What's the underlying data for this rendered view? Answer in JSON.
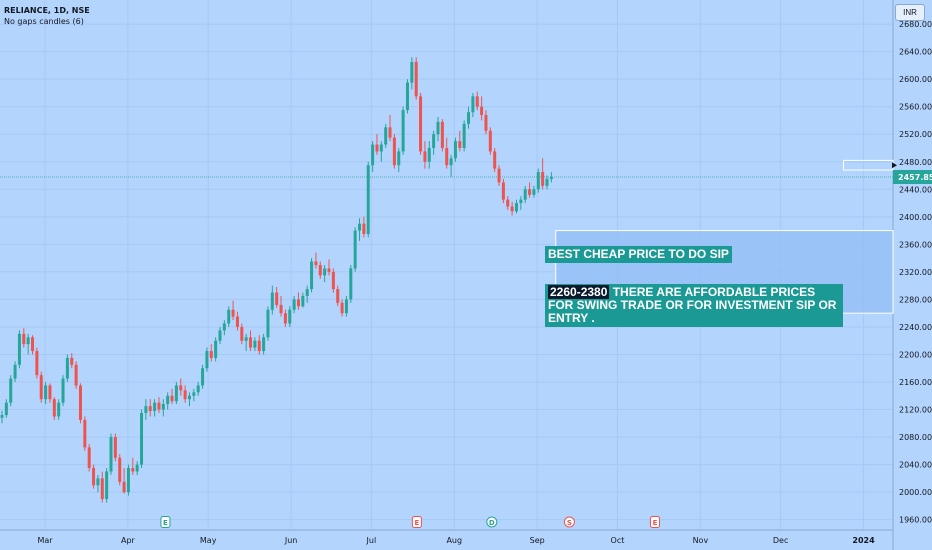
{
  "header": {
    "title": "RELIANCE, 1D, NSE",
    "subtitle": "No gaps candles (6)",
    "currency": "INR"
  },
  "annotations": {
    "note1": "BEST CHEAP PRICE TO DO SIP",
    "note2_range": "2260-2380",
    "note2_text": " THERE ARE AFFORDABLE PRICES FOR SWING TRADE OR FOR INVESTMENT SIP OR ENTRY ."
  },
  "chart_data": {
    "type": "candlestick",
    "symbol": "RELIANCE",
    "interval": "1D",
    "exchange": "NSE",
    "currency": "INR",
    "last_price": 2457.85,
    "ylim": [
      1945,
      2715
    ],
    "y_ticks": [
      1960,
      2000,
      2040,
      2080,
      2120,
      2160,
      2200,
      2240,
      2280,
      2320,
      2360,
      2400,
      2440,
      2480,
      2520,
      2560,
      2600,
      2640,
      2680
    ],
    "x_ticks": [
      {
        "label": "Mar",
        "day": 0
      },
      {
        "label": "Apr",
        "day": 31
      },
      {
        "label": "May",
        "day": 61
      },
      {
        "label": "Jun",
        "day": 92
      },
      {
        "label": "Jul",
        "day": 122
      },
      {
        "label": "Aug",
        "day": 153
      },
      {
        "label": "Sep",
        "day": 184
      },
      {
        "label": "Oct",
        "day": 214
      },
      {
        "label": "Nov",
        "day": 245
      },
      {
        "label": "Dec",
        "day": 275
      },
      {
        "label": "2024",
        "day": 306
      }
    ],
    "zones": [
      {
        "name": "accumulation-zone",
        "low": 2260,
        "high": 2380,
        "from_day": 127,
        "to_day": 340
      },
      {
        "name": "resistance-zone",
        "low": 2468,
        "high": 2482,
        "from_day": 193,
        "to_day": 340
      }
    ],
    "price_line": 2457.85,
    "colors": {
      "up": "#26a69a",
      "down": "#ef5350",
      "background": "#b3d4fc",
      "zone": "#90bdf7"
    },
    "event_markers": [
      {
        "day": 54,
        "letter": "E",
        "color": "#26a69a"
      },
      {
        "day": 148,
        "letter": "E",
        "color": "#ef5350"
      },
      {
        "day": 176,
        "letter": "D",
        "color": "#26a69a"
      },
      {
        "day": 205,
        "letter": "S",
        "color": "#ef5350"
      },
      {
        "day": 237,
        "letter": "E",
        "color": "#ef5350"
      }
    ],
    "candles": [
      [
        0,
        2108,
        2118,
        2100,
        2112
      ],
      [
        1,
        2112,
        2135,
        2108,
        2130
      ],
      [
        2,
        2130,
        2170,
        2125,
        2165
      ],
      [
        3,
        2165,
        2190,
        2160,
        2185
      ],
      [
        4,
        2185,
        2235,
        2180,
        2230
      ],
      [
        5,
        2230,
        2238,
        2210,
        2215
      ],
      [
        6,
        2215,
        2230,
        2200,
        2225
      ],
      [
        7,
        2225,
        2228,
        2200,
        2205
      ],
      [
        8,
        2205,
        2210,
        2165,
        2170
      ],
      [
        9,
        2170,
        2175,
        2130,
        2135
      ],
      [
        10,
        2135,
        2160,
        2128,
        2155
      ],
      [
        11,
        2155,
        2158,
        2130,
        2135
      ],
      [
        12,
        2135,
        2138,
        2105,
        2110
      ],
      [
        13,
        2110,
        2135,
        2105,
        2130
      ],
      [
        14,
        2130,
        2170,
        2125,
        2165
      ],
      [
        15,
        2165,
        2200,
        2160,
        2195
      ],
      [
        16,
        2195,
        2202,
        2180,
        2185
      ],
      [
        17,
        2185,
        2190,
        2150,
        2155
      ],
      [
        18,
        2155,
        2158,
        2100,
        2105
      ],
      [
        19,
        2105,
        2110,
        2060,
        2065
      ],
      [
        20,
        2065,
        2070,
        2030,
        2035
      ],
      [
        21,
        2035,
        2040,
        2005,
        2010
      ],
      [
        22,
        2010,
        2025,
        2000,
        2020
      ],
      [
        23,
        2020,
        2030,
        1985,
        1990
      ],
      [
        24,
        1990,
        2035,
        1985,
        2030
      ],
      [
        25,
        2030,
        2085,
        2025,
        2080
      ],
      [
        26,
        2080,
        2085,
        2045,
        2050
      ],
      [
        27,
        2050,
        2055,
        2010,
        2015
      ],
      [
        28,
        2015,
        2035,
        1998,
        2000
      ],
      [
        29,
        2000,
        2040,
        1995,
        2035
      ],
      [
        30,
        2035,
        2050,
        2025,
        2030
      ],
      [
        31,
        2030,
        2045,
        2025,
        2040
      ],
      [
        32,
        2040,
        2120,
        2035,
        2115
      ],
      [
        33,
        2115,
        2135,
        2105,
        2125
      ],
      [
        34,
        2125,
        2135,
        2110,
        2118
      ],
      [
        35,
        2118,
        2135,
        2110,
        2130
      ],
      [
        36,
        2130,
        2138,
        2115,
        2120
      ],
      [
        37,
        2120,
        2135,
        2110,
        2128
      ],
      [
        38,
        2128,
        2145,
        2120,
        2140
      ],
      [
        39,
        2140,
        2150,
        2128,
        2132
      ],
      [
        40,
        2132,
        2160,
        2128,
        2155
      ],
      [
        41,
        2155,
        2165,
        2140,
        2148
      ],
      [
        42,
        2148,
        2155,
        2130,
        2135
      ],
      [
        43,
        2135,
        2145,
        2125,
        2140
      ],
      [
        44,
        2140,
        2150,
        2132,
        2145
      ],
      [
        45,
        2145,
        2160,
        2140,
        2155
      ],
      [
        46,
        2155,
        2185,
        2150,
        2180
      ],
      [
        47,
        2180,
        2210,
        2175,
        2205
      ],
      [
        48,
        2205,
        2215,
        2190,
        2195
      ],
      [
        49,
        2195,
        2225,
        2190,
        2220
      ],
      [
        50,
        2220,
        2240,
        2215,
        2235
      ],
      [
        51,
        2235,
        2250,
        2228,
        2245
      ],
      [
        52,
        2245,
        2270,
        2240,
        2265
      ],
      [
        53,
        2265,
        2278,
        2250,
        2255
      ],
      [
        54,
        2255,
        2262,
        2235,
        2240
      ],
      [
        55,
        2240,
        2245,
        2215,
        2220
      ],
      [
        56,
        2220,
        2230,
        2205,
        2225
      ],
      [
        57,
        2225,
        2235,
        2205,
        2210
      ],
      [
        58,
        2210,
        2225,
        2205,
        2220
      ],
      [
        59,
        2220,
        2228,
        2200,
        2205
      ],
      [
        60,
        2205,
        2230,
        2200,
        2225
      ],
      [
        61,
        2225,
        2270,
        2220,
        2265
      ],
      [
        62,
        2265,
        2300,
        2258,
        2290
      ],
      [
        63,
        2290,
        2298,
        2268,
        2272
      ],
      [
        64,
        2272,
        2285,
        2255,
        2260
      ],
      [
        65,
        2260,
        2265,
        2240,
        2245
      ],
      [
        66,
        2245,
        2270,
        2240,
        2265
      ],
      [
        67,
        2265,
        2285,
        2260,
        2280
      ],
      [
        68,
        2280,
        2290,
        2265,
        2270
      ],
      [
        69,
        2270,
        2290,
        2268,
        2285
      ],
      [
        70,
        2285,
        2300,
        2275,
        2295
      ],
      [
        71,
        2295,
        2340,
        2290,
        2335
      ],
      [
        72,
        2335,
        2348,
        2325,
        2330
      ],
      [
        73,
        2330,
        2335,
        2310,
        2315
      ],
      [
        74,
        2315,
        2330,
        2305,
        2325
      ],
      [
        75,
        2325,
        2338,
        2315,
        2320
      ],
      [
        76,
        2320,
        2325,
        2290,
        2295
      ],
      [
        77,
        2295,
        2300,
        2270,
        2275
      ],
      [
        78,
        2275,
        2280,
        2255,
        2260
      ],
      [
        79,
        2260,
        2285,
        2255,
        2280
      ],
      [
        80,
        2280,
        2330,
        2275,
        2325
      ],
      [
        81,
        2325,
        2385,
        2320,
        2380
      ],
      [
        82,
        2380,
        2398,
        2365,
        2390
      ],
      [
        83,
        2390,
        2400,
        2370,
        2375
      ],
      [
        84,
        2375,
        2480,
        2370,
        2475
      ],
      [
        85,
        2475,
        2510,
        2465,
        2505
      ],
      [
        86,
        2505,
        2520,
        2490,
        2495
      ],
      [
        87,
        2495,
        2510,
        2480,
        2505
      ],
      [
        88,
        2505,
        2535,
        2500,
        2530
      ],
      [
        89,
        2530,
        2548,
        2510,
        2515
      ],
      [
        90,
        2515,
        2520,
        2470,
        2475
      ],
      [
        91,
        2475,
        2500,
        2465,
        2495
      ],
      [
        92,
        2495,
        2560,
        2490,
        2555
      ],
      [
        93,
        2555,
        2600,
        2550,
        2595
      ],
      [
        94,
        2595,
        2632,
        2585,
        2625
      ],
      [
        95,
        2625,
        2632,
        2570,
        2575
      ],
      [
        96,
        2575,
        2580,
        2490,
        2495
      ],
      [
        97,
        2495,
        2510,
        2470,
        2480
      ],
      [
        98,
        2480,
        2510,
        2470,
        2500
      ],
      [
        99,
        2500,
        2525,
        2490,
        2520
      ],
      [
        100,
        2520,
        2545,
        2510,
        2538
      ],
      [
        101,
        2538,
        2542,
        2495,
        2500
      ],
      [
        102,
        2500,
        2515,
        2470,
        2475
      ],
      [
        103,
        2475,
        2490,
        2458,
        2485
      ],
      [
        104,
        2485,
        2515,
        2480,
        2510
      ],
      [
        105,
        2510,
        2525,
        2495,
        2500
      ],
      [
        106,
        2500,
        2540,
        2495,
        2535
      ],
      [
        107,
        2535,
        2560,
        2528,
        2552
      ],
      [
        108,
        2552,
        2580,
        2545,
        2575
      ],
      [
        109,
        2575,
        2582,
        2555,
        2560
      ],
      [
        110,
        2560,
        2575,
        2540,
        2548
      ],
      [
        111,
        2548,
        2555,
        2520,
        2525
      ],
      [
        112,
        2525,
        2530,
        2490,
        2495
      ],
      [
        113,
        2495,
        2500,
        2465,
        2470
      ],
      [
        114,
        2470,
        2475,
        2445,
        2450
      ],
      [
        115,
        2450,
        2455,
        2420,
        2425
      ],
      [
        116,
        2425,
        2430,
        2410,
        2415
      ],
      [
        117,
        2415,
        2422,
        2402,
        2408
      ],
      [
        118,
        2408,
        2425,
        2405,
        2420
      ],
      [
        119,
        2420,
        2430,
        2410,
        2425
      ],
      [
        120,
        2425,
        2445,
        2420,
        2440
      ],
      [
        121,
        2440,
        2450,
        2428,
        2432
      ],
      [
        122,
        2432,
        2445,
        2428,
        2440
      ],
      [
        123,
        2440,
        2470,
        2435,
        2465
      ],
      [
        124,
        2465,
        2485,
        2440,
        2445
      ],
      [
        125,
        2445,
        2460,
        2440,
        2455
      ],
      [
        126,
        2455,
        2465,
        2450,
        2458
      ]
    ]
  }
}
